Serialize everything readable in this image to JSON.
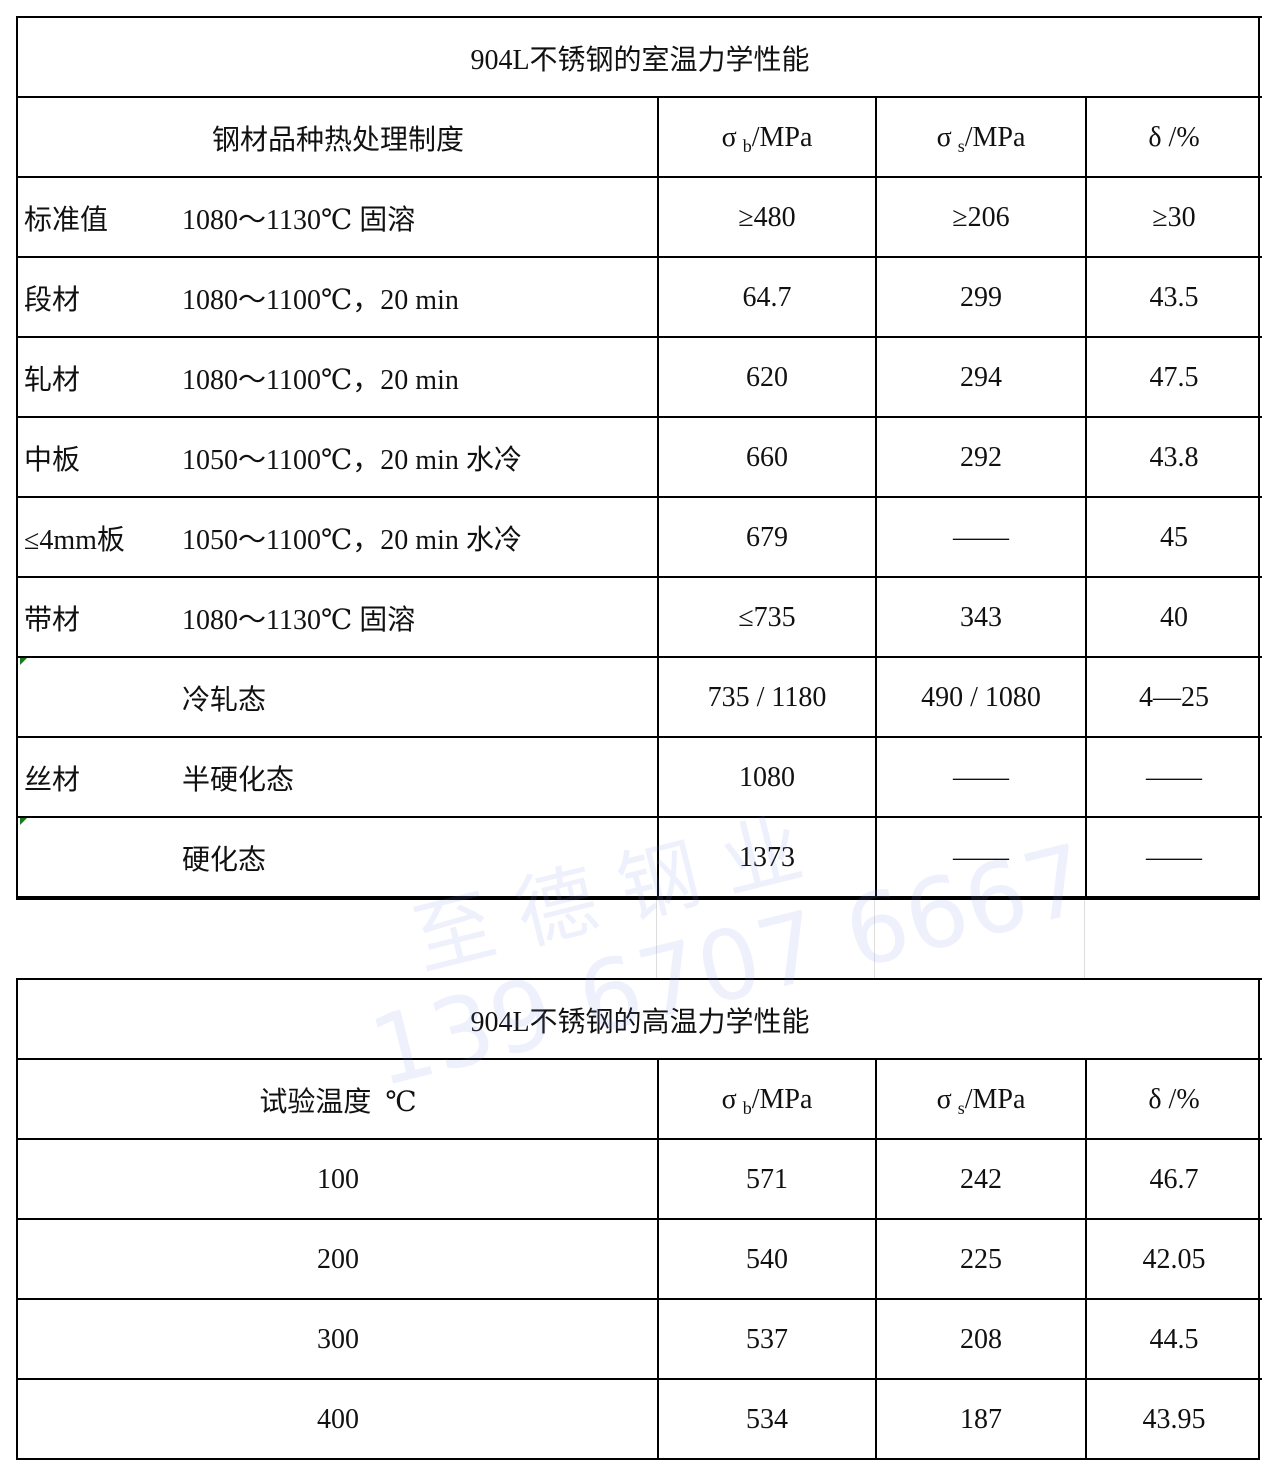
{
  "table1": {
    "title": "904L不锈钢的室温力学性能",
    "headers": {
      "treatment": "钢材品种热处理制度",
      "sigma_b": "σ",
      "sigma_b_sub": "b",
      "sigma_b_unit": "/MPa",
      "sigma_s": "σ",
      "sigma_s_sub": "s",
      "sigma_s_unit": "/MPa",
      "delta": "δ /%"
    },
    "rows": [
      {
        "category": "标准值",
        "treatment": "1080～1130℃ 固溶",
        "sigma_b": "≥480",
        "sigma_s": "≥206",
        "delta": "≥30"
      },
      {
        "category": "段材",
        "treatment": "1080～1100℃，20 min",
        "sigma_b": "64.7",
        "sigma_s": "299",
        "delta": "43.5"
      },
      {
        "category": "轧材",
        "treatment": "1080～1100℃，20 min",
        "sigma_b": "620",
        "sigma_s": "294",
        "delta": "47.5"
      },
      {
        "category": "中板",
        "treatment": "1050～1100℃，20 min 水冷",
        "sigma_b": "660",
        "sigma_s": "292",
        "delta": "43.8"
      },
      {
        "category": "≤4mm板",
        "treatment": "1050～1100℃，20 min 水冷",
        "sigma_b": "679",
        "sigma_s": "——",
        "delta": "45"
      },
      {
        "category": "带材",
        "treatment": "1080～1130℃ 固溶",
        "sigma_b": "≤735",
        "sigma_s": "343",
        "delta": "40"
      },
      {
        "category": "",
        "treatment": "冷轧态",
        "sigma_b": "735 / 1180",
        "sigma_s": "490 / 1080",
        "delta": "4—25"
      },
      {
        "category": "丝材",
        "treatment": "半硬化态",
        "sigma_b": "1080",
        "sigma_s": "——",
        "delta": "——"
      },
      {
        "category": "",
        "treatment": "硬化态",
        "sigma_b": "1373",
        "sigma_s": "——",
        "delta": "——"
      }
    ]
  },
  "table2": {
    "title": "904L不锈钢的高温力学性能",
    "headers": {
      "temperature": "试验温度  ℃",
      "sigma_b": "σ",
      "sigma_b_sub": "b",
      "sigma_b_unit": "/MPa",
      "sigma_s": "σ",
      "sigma_s_sub": "s",
      "sigma_s_unit": "/MPa",
      "delta": "δ /%"
    },
    "rows": [
      {
        "temperature": "100",
        "sigma_b": "571",
        "sigma_s": "242",
        "delta": "46.7"
      },
      {
        "temperature": "200",
        "sigma_b": "540",
        "sigma_s": "225",
        "delta": "42.05"
      },
      {
        "temperature": "300",
        "sigma_b": "537",
        "sigma_s": "208",
        "delta": "44.5"
      },
      {
        "temperature": "400",
        "sigma_b": "534",
        "sigma_s": "187",
        "delta": "43.95"
      }
    ]
  },
  "watermark": {
    "name": "至 德 钢 业",
    "phone": "139 6707 6667"
  }
}
